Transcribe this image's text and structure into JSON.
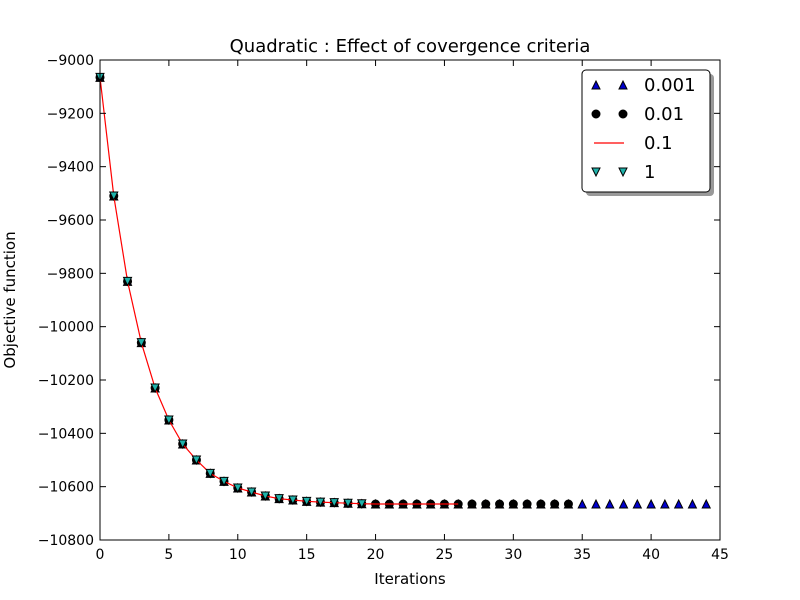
{
  "chart_data": {
    "type": "line",
    "title": "Quadratic : Effect of covergence criteria",
    "xlabel": "Iterations",
    "ylabel": "Objective function",
    "xlim": [
      0,
      45
    ],
    "ylim": [
      -10800,
      -9000
    ],
    "xticks": [
      0,
      5,
      10,
      15,
      20,
      25,
      30,
      35,
      40,
      45
    ],
    "yticks": [
      -9000,
      -9200,
      -9400,
      -9600,
      -9800,
      -10000,
      -10200,
      -10400,
      -10600,
      -10800
    ],
    "xtick_labels": [
      "0",
      "5",
      "10",
      "15",
      "20",
      "25",
      "30",
      "35",
      "40",
      "45"
    ],
    "ytick_labels": [
      "−9000",
      "−9200",
      "−9400",
      "−9600",
      "−9800",
      "−10000",
      "−10200",
      "−10400",
      "−10600",
      "−10800"
    ],
    "grid": false,
    "legend_position": "top-right",
    "series": [
      {
        "name": "0.001",
        "style": "triangle-up",
        "color": "#0000cc",
        "x": [
          0,
          1,
          2,
          3,
          4,
          5,
          6,
          7,
          8,
          9,
          10,
          11,
          12,
          13,
          14,
          15,
          16,
          17,
          18,
          19,
          20,
          21,
          22,
          23,
          24,
          25,
          26,
          27,
          28,
          29,
          30,
          31,
          32,
          33,
          34,
          35,
          36,
          37,
          38,
          39,
          40,
          41,
          42,
          43,
          44
        ],
        "y": [
          -9065,
          -9510,
          -9830,
          -10060,
          -10230,
          -10350,
          -10440,
          -10500,
          -10550,
          -10580,
          -10605,
          -10620,
          -10635,
          -10645,
          -10650,
          -10655,
          -10658,
          -10660,
          -10662,
          -10664,
          -10665,
          -10665,
          -10665,
          -10665,
          -10665,
          -10665,
          -10665,
          -10665,
          -10665,
          -10665,
          -10665,
          -10665,
          -10665,
          -10665,
          -10665,
          -10665,
          -10665,
          -10665,
          -10665,
          -10665,
          -10665,
          -10665,
          -10665,
          -10665,
          -10665
        ]
      },
      {
        "name": "0.01",
        "style": "circle",
        "color": "#000000",
        "x": [
          0,
          1,
          2,
          3,
          4,
          5,
          6,
          7,
          8,
          9,
          10,
          11,
          12,
          13,
          14,
          15,
          16,
          17,
          18,
          19,
          20,
          21,
          22,
          23,
          24,
          25,
          26,
          27,
          28,
          29,
          30,
          31,
          32,
          33,
          34
        ],
        "y": [
          -9065,
          -9510,
          -9830,
          -10060,
          -10230,
          -10350,
          -10440,
          -10500,
          -10550,
          -10580,
          -10605,
          -10620,
          -10635,
          -10645,
          -10650,
          -10655,
          -10658,
          -10660,
          -10662,
          -10664,
          -10665,
          -10665,
          -10665,
          -10665,
          -10665,
          -10665,
          -10665,
          -10665,
          -10665,
          -10665,
          -10665,
          -10665,
          -10665,
          -10665,
          -10665
        ]
      },
      {
        "name": "0.1",
        "style": "line",
        "color": "#ff0000",
        "x": [
          0,
          1,
          2,
          3,
          4,
          5,
          6,
          7,
          8,
          9,
          10,
          11,
          12,
          13,
          14,
          15,
          16,
          17,
          18,
          19,
          20,
          21,
          22,
          23,
          24,
          25,
          26
        ],
        "y": [
          -9065,
          -9510,
          -9830,
          -10060,
          -10230,
          -10350,
          -10440,
          -10500,
          -10550,
          -10580,
          -10605,
          -10620,
          -10635,
          -10645,
          -10650,
          -10655,
          -10658,
          -10660,
          -10662,
          -10664,
          -10665,
          -10665,
          -10665,
          -10665,
          -10665,
          -10665,
          -10665
        ]
      },
      {
        "name": "1",
        "style": "triangle-down",
        "color": "#20b2aa",
        "x": [
          0,
          1,
          2,
          3,
          4,
          5,
          6,
          7,
          8,
          9,
          10,
          11,
          12,
          13,
          14,
          15,
          16,
          17,
          18,
          19
        ],
        "y": [
          -9065,
          -9510,
          -9830,
          -10060,
          -10230,
          -10350,
          -10440,
          -10500,
          -10550,
          -10580,
          -10605,
          -10620,
          -10635,
          -10645,
          -10650,
          -10655,
          -10658,
          -10660,
          -10662,
          -10664
        ]
      }
    ]
  }
}
